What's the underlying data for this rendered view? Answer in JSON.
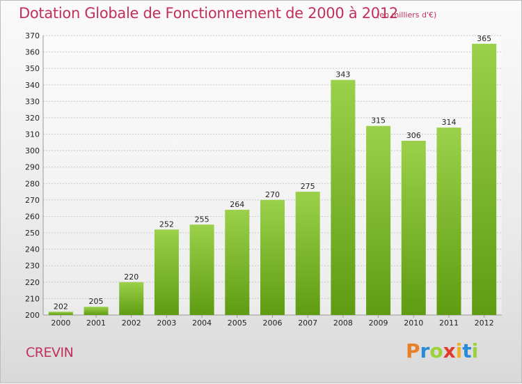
{
  "title": "Dotation Globale de Fonctionnement de 2000 à 2012",
  "unit_note": "(en milliers d'€)",
  "commune": "CREVIN",
  "logo": {
    "text": "Proxiti",
    "colors": [
      "#e8802a",
      "#2a8ad8",
      "#9bd23a",
      "#e03c2a",
      "#f0b02a",
      "#2a8ad8",
      "#9bd23a"
    ]
  },
  "colors": {
    "title": "#c0305a",
    "bar_light": "#9bd14a",
    "bar_dark": "#5f9c12"
  },
  "chart_data": {
    "type": "bar",
    "categories": [
      "2000",
      "2001",
      "2002",
      "2003",
      "2004",
      "2005",
      "2006",
      "2007",
      "2008",
      "2009",
      "2010",
      "2011",
      "2012"
    ],
    "values": [
      202,
      205,
      220,
      252,
      255,
      264,
      270,
      275,
      343,
      315,
      306,
      314,
      365
    ],
    "ylim": [
      200,
      370
    ],
    "yticks": [
      200,
      210,
      220,
      230,
      240,
      250,
      260,
      270,
      280,
      290,
      300,
      310,
      320,
      330,
      340,
      350,
      360,
      370
    ],
    "xlabel": "",
    "ylabel": "",
    "grid": true,
    "data_labels": true
  }
}
